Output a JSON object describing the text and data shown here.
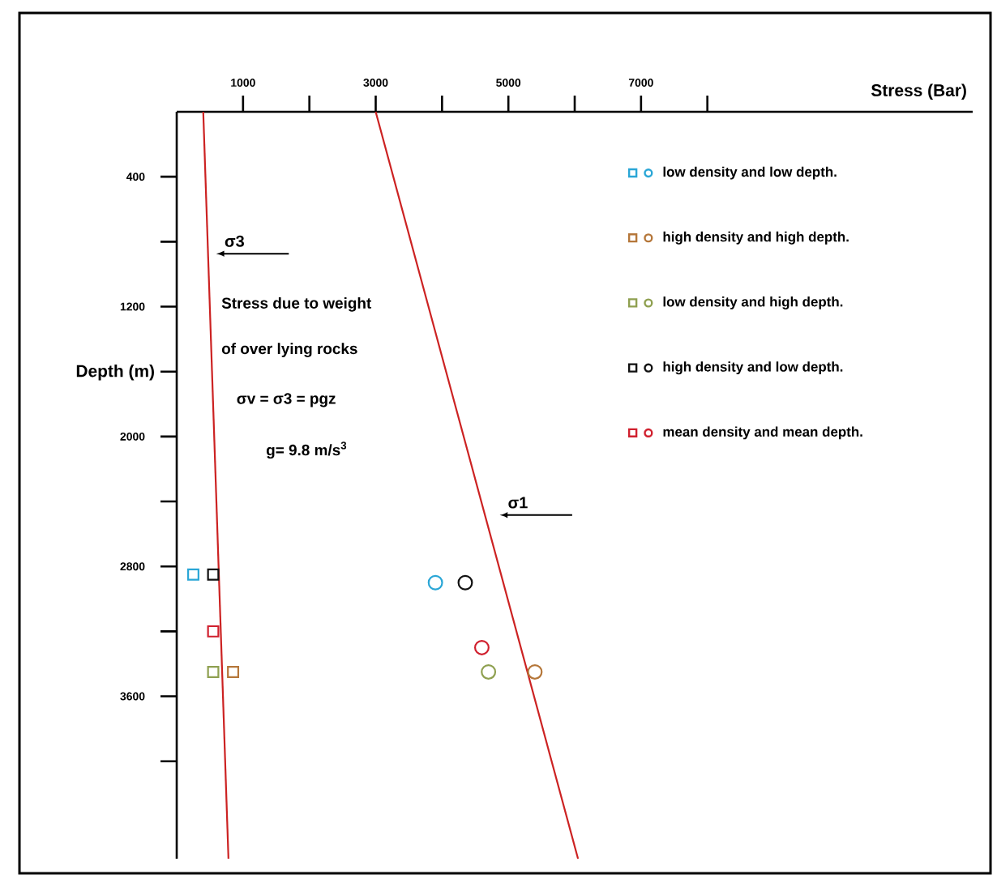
{
  "chart_data": {
    "type": "scatter",
    "xlabel": "Stress (Bar)",
    "ylabel": "Depth (m)",
    "xlim": [
      0,
      12000
    ],
    "ylim": [
      4600,
      0
    ],
    "xticks": [
      1000,
      {
        "value": 2000,
        "label": null
      },
      3000,
      {
        "value": 4000,
        "label": null
      },
      5000,
      {
        "value": 6000,
        "label": null
      },
      7000,
      {
        "value": 8000,
        "label": null
      }
    ],
    "yticks": [
      400,
      {
        "value": 800,
        "label": null
      },
      1200,
      {
        "value": 1600,
        "label": null
      },
      2000,
      {
        "value": 2400,
        "label": null
      },
      2800,
      {
        "value": 3200,
        "label": null
      },
      3600,
      {
        "value": 4000,
        "label": null
      }
    ],
    "legend": "top right",
    "annotations": [
      "Stress due  to weight",
      "of over lying rocks",
      "σv = σ3 = pgz",
      "g= 9.8 m/s$^{3}$"
    ],
    "series": [
      {
        "name": "σ3",
        "type": "line",
        "color": "#cc2222",
        "marker": "none",
        "x": [
          400,
          780
        ],
        "values": [
          0,
          4600
        ]
      },
      {
        "name": "σ1",
        "type": "line",
        "color": "#cc2222",
        "marker": "none",
        "x": [
          3000,
          6050
        ],
        "values": [
          0,
          4600
        ]
      },
      {
        "color": "#2aa6d6",
        "marker": "square",
        "x": [
          250
        ],
        "values": [
          2850
        ]
      },
      {
        "name": "low density  and low depth.",
        "color": "#2aa6d6",
        "marker": "circle",
        "x": [
          3900
        ],
        "values": [
          2900
        ]
      },
      {
        "color": "#b5773a",
        "marker": "square",
        "x": [
          850
        ],
        "values": [
          3450
        ]
      },
      {
        "name": "high density  and high depth.",
        "color": "#b5773a",
        "marker": "circle",
        "x": [
          5400
        ],
        "values": [
          3450
        ]
      },
      {
        "color": "#8fa050",
        "marker": "square",
        "x": [
          550
        ],
        "values": [
          3450
        ]
      },
      {
        "name": "low density  and high depth.",
        "color": "#8fa050",
        "marker": "circle",
        "x": [
          4700
        ],
        "values": [
          3450
        ]
      },
      {
        "color": "#111111",
        "marker": "square",
        "x": [
          550
        ],
        "values": [
          2850
        ]
      },
      {
        "name": "high density  and low depth.",
        "color": "#111111",
        "marker": "circle",
        "x": [
          4350
        ],
        "values": [
          2900
        ]
      },
      {
        "color": "#d0202e",
        "marker": "square",
        "x": [
          550
        ],
        "values": [
          3200
        ]
      },
      {
        "name": "mean density and mean depth.",
        "color": "#d0202e",
        "marker": "circle",
        "x": [
          4600
        ],
        "values": [
          3300
        ]
      }
    ]
  }
}
